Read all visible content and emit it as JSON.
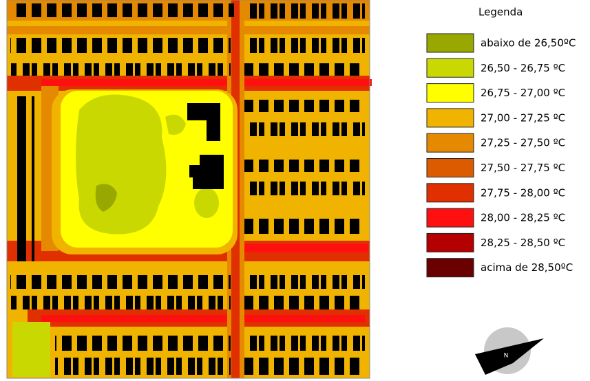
{
  "legend": {
    "title": "Legenda",
    "items": [
      {
        "label": "abaixo de 26,50ºC",
        "color": "#99a800"
      },
      {
        "label": "26,50 - 26,75 ºC",
        "color": "#c8d800"
      },
      {
        "label": "26,75 - 27,00 ºC",
        "color": "#ffff00"
      },
      {
        "label": "27,00 - 27,25 ºC",
        "color": "#f0b400"
      },
      {
        "label": "27,25 - 27,50 ºC",
        "color": "#e58a00"
      },
      {
        "label": "27,50 - 27,75 ºC",
        "color": "#dc5a00"
      },
      {
        "label": "27,75 - 28,00 ºC",
        "color": "#e03000"
      },
      {
        "label": "28,00 - 28,25 ºC",
        "color": "#ff1010"
      },
      {
        "label": "28,25 - 28,50 ºC",
        "color": "#b40000"
      },
      {
        "label": "acima de 28,50ºC",
        "color": "#6a0000"
      }
    ]
  },
  "north_arrow": {
    "label": "N"
  }
}
